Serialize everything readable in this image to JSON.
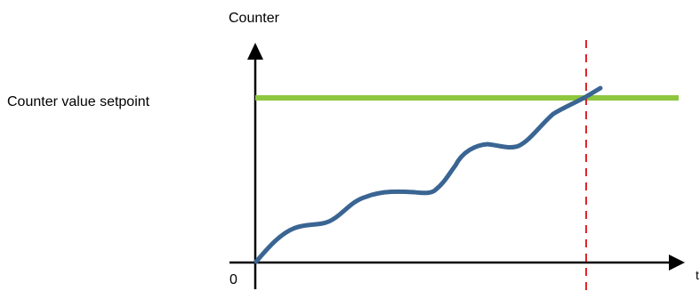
{
  "diagram": {
    "y_axis_label": "Counter",
    "x_axis_label": "t",
    "origin_label": "0",
    "setpoint_label": "Counter value setpoint",
    "colors": {
      "axis": "#000000",
      "setpoint_line": "#8dc63f",
      "curve": "#3a6593",
      "marker_line": "#e0242b"
    }
  }
}
